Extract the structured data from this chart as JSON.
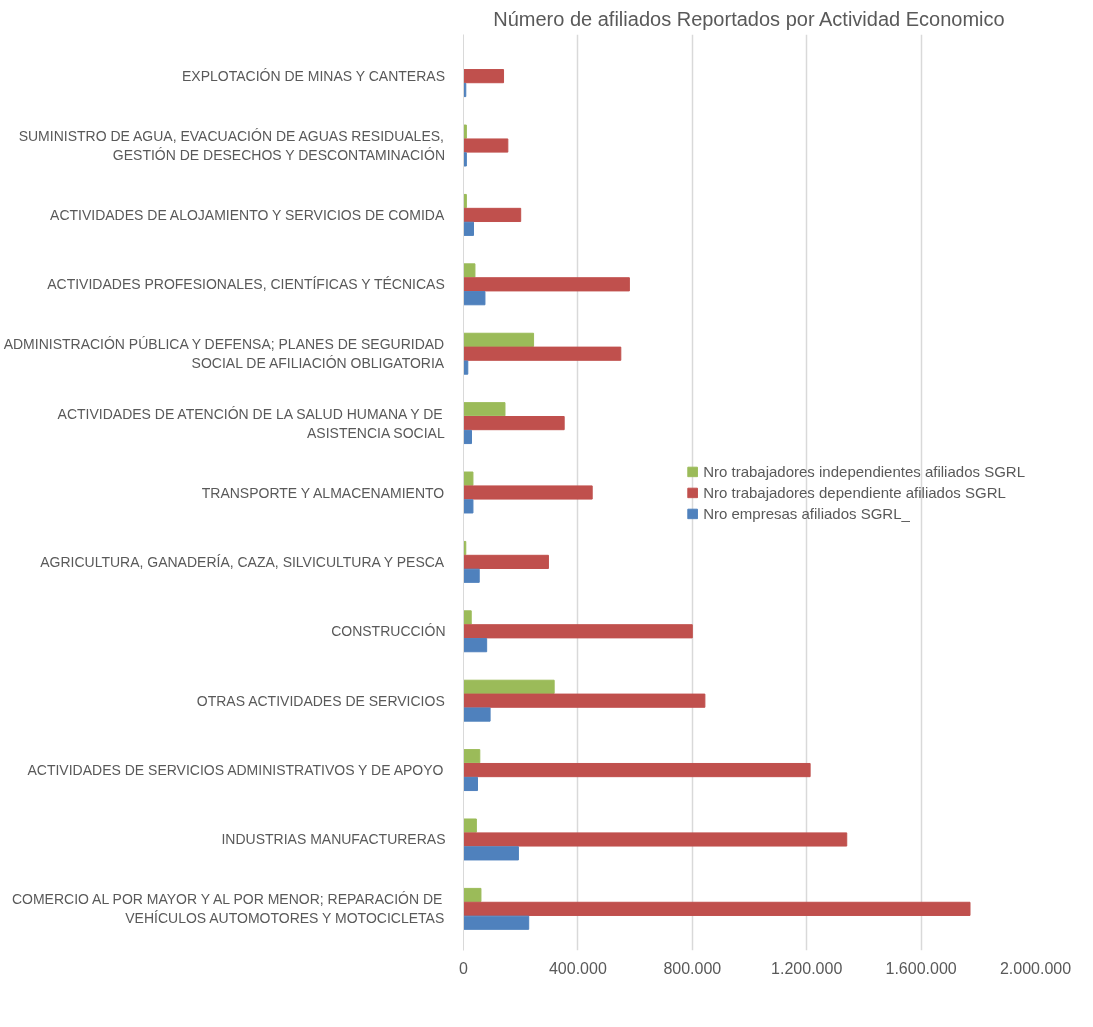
{
  "chart_data": {
    "type": "bar",
    "orientation": "horizontal",
    "title": "Número de afiliados Reportados por Actividad Economico",
    "categories": [
      "EXPLOTACIÓN DE MINAS Y CANTERAS",
      "SUMINISTRO DE AGUA, EVACUACIÓN DE AGUAS RESIDUALES, GESTIÓN DE DESECHOS Y DESCONTAMINACIÓN",
      "ACTIVIDADES DE ALOJAMIENTO Y SERVICIOS DE COMIDA",
      "ACTIVIDADES PROFESIONALES, CIENTÍFICAS Y TÉCNICAS",
      "ADMINISTRACIÓN PÚBLICA Y DEFENSA; PLANES DE SEGURIDAD SOCIAL DE AFILIACIÓN OBLIGATORIA",
      "ACTIVIDADES DE ATENCIÓN DE LA SALUD HUMANA Y DE ASISTENCIA SOCIAL",
      "TRANSPORTE Y ALMACENAMIENTO",
      "AGRICULTURA, GANADERÍA, CAZA, SILVICULTURA Y PESCA",
      "CONSTRUCCIÓN",
      "OTRAS ACTIVIDADES DE SERVICIOS",
      "ACTIVIDADES DE SERVICIOS ADMINISTRATIVOS Y DE APOYO",
      "INDUSTRIAS MANUFACTURERAS",
      "COMERCIO AL POR MAYOR Y AL POR MENOR; REPARACIÓN DE VEHÍCULOS AUTOMOTORES Y MOTOCICLETAS"
    ],
    "series": [
      {
        "name": "Nro trabajadores independientes afiliados SGRL",
        "color": "#9bbb59",
        "values": [
          null,
          10000,
          10000,
          40000,
          245000,
          145000,
          33000,
          8000,
          27000,
          317000,
          57000,
          45000,
          61000
        ]
      },
      {
        "name": "Nro trabajadores dependiente afiliados SGRL",
        "color": "#c0504d",
        "values": [
          140000,
          155000,
          200000,
          580000,
          550000,
          352000,
          450000,
          297000,
          800000,
          844000,
          1212000,
          1340000,
          1771000
        ]
      },
      {
        "name": "Nro empresas afiliados SGRL_",
        "color": "#4f81bd",
        "values": [
          8000,
          10000,
          35000,
          75000,
          15000,
          28000,
          33000,
          55000,
          81000,
          93000,
          49000,
          192000,
          228000
        ]
      }
    ],
    "xlim": [
      0,
      2000000
    ],
    "xticks": [
      0,
      {
        "value": 400000,
        "label": "400.000"
      },
      {
        "value": 800000,
        "label": "800.000"
      },
      {
        "value": 1200000,
        "label": "1.200.000"
      },
      {
        "value": 1600000,
        "label": "1.600.000"
      },
      {
        "value": 2000000,
        "label": "2.000.000"
      }
    ],
    "grid": "x",
    "legend": "right"
  }
}
